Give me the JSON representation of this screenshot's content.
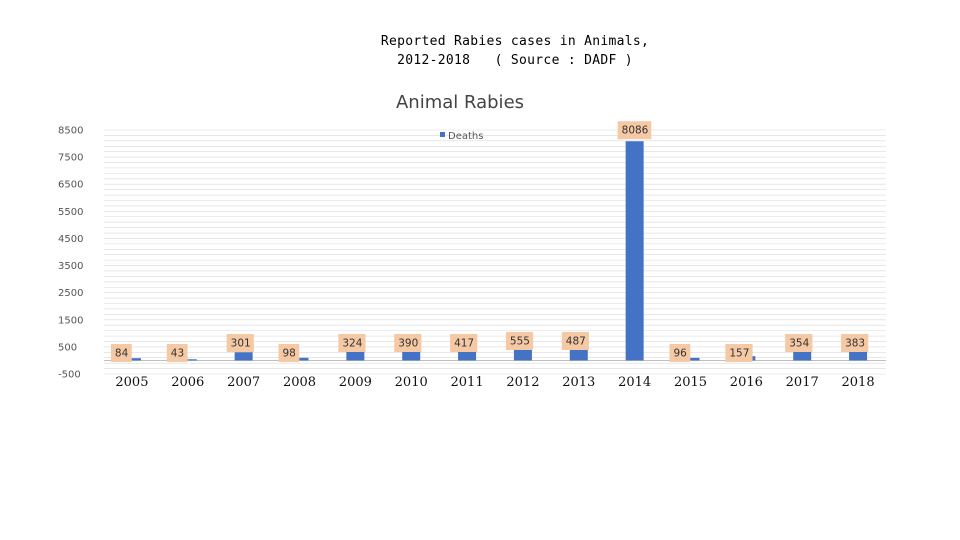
{
  "slide": {
    "title_line1": "Reported Rabies cases in Animals,",
    "title_line2": "2012-2018   ( Source : DADF )"
  },
  "chart_data": {
    "type": "bar",
    "title": "Animal Rabies",
    "xlabel": "",
    "ylabel": "",
    "categories": [
      "2005",
      "2006",
      "2007",
      "2008",
      "2009",
      "2010",
      "2011",
      "2012",
      "2013",
      "2014",
      "2015",
      "2016",
      "2017",
      "2018"
    ],
    "series": [
      {
        "name": "Deaths",
        "values": [
          84,
          43,
          301,
          98,
          324,
          390,
          417,
          555,
          487,
          8086,
          96,
          157,
          354,
          383
        ]
      }
    ],
    "data_labels": [
      "84",
      "43",
      "301",
      "98",
      "324",
      "390",
      "417",
      "555",
      "487",
      "8086",
      "96",
      "157",
      "354",
      "383"
    ],
    "yticks": [
      "-500",
      "500",
      "1500",
      "2500",
      "3500",
      "4500",
      "5500",
      "6500",
      "7500",
      "8500"
    ],
    "ylim": [
      -500,
      8500
    ],
    "grid": true,
    "legend_position": "top",
    "colors": {
      "bar": "#4472c4",
      "label_bg": "#f6c9a5",
      "grid": "#d9d9d9"
    }
  }
}
